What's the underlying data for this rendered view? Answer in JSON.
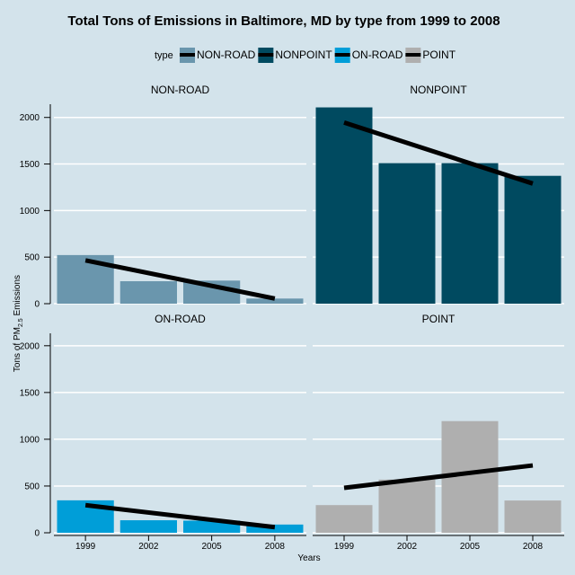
{
  "chart_data": {
    "type": "bar",
    "title": "Total Tons of Emissions in Baltimore, MD by type from 1999 to 2008",
    "xlabel": "Years",
    "ylabel": {
      "prefix": "Tons of PM",
      "subscript": "2.5",
      "suffix": " Emissions"
    },
    "legend": {
      "title": "type",
      "placement": "top",
      "entries": [
        {
          "name": "NON-ROAD",
          "color": "#6a96ad"
        },
        {
          "name": "NONPOINT",
          "color": "#004a60"
        },
        {
          "name": "ON-ROAD",
          "color": "#009ed8"
        },
        {
          "name": "POINT",
          "color": "#afafaf"
        }
      ]
    },
    "categories": [
      "1999",
      "2002",
      "2005",
      "2008"
    ],
    "ylim": [
      0,
      2200
    ],
    "yticks": [
      0,
      500,
      1000,
      1500,
      2000
    ],
    "grid": true,
    "trend_line_color": "#000000",
    "panels": [
      {
        "name": "NON-ROAD",
        "color": "#6a96ad",
        "values": [
          522,
          241,
          248,
          55
        ],
        "trend": [
          465,
          55
        ]
      },
      {
        "name": "NONPOINT",
        "color": "#004a60",
        "values": [
          2108,
          1509,
          1509,
          1373
        ],
        "trend": [
          1945,
          1290
        ]
      },
      {
        "name": "ON-ROAD",
        "color": "#009ed8",
        "values": [
          347,
          134,
          130,
          88
        ],
        "trend": [
          295,
          60
        ]
      },
      {
        "name": "POINT",
        "color": "#afafaf",
        "values": [
          296,
          569,
          1194,
          345
        ],
        "trend": [
          480,
          720
        ]
      }
    ]
  }
}
